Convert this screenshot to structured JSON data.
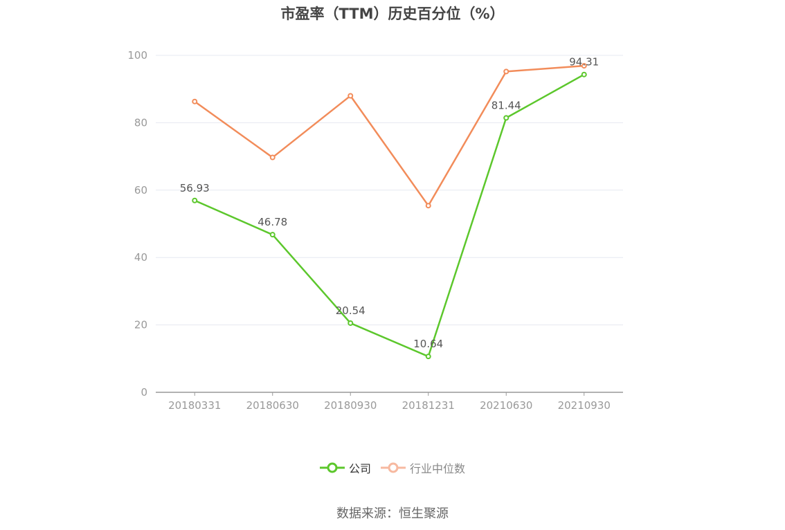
{
  "title": "市盈率（TTM）历史百分位（%）",
  "source": "数据来源：恒生聚源",
  "chart_data": {
    "type": "line",
    "title": "市盈率（TTM）历史百分位（%）",
    "categories": [
      "20180331",
      "20180630",
      "20180930",
      "20181231",
      "20210630",
      "20210930"
    ],
    "ylim": [
      0,
      100
    ],
    "yticks": [
      0,
      20,
      40,
      60,
      80,
      100
    ],
    "grid": true,
    "legend_position": "bottom",
    "series": [
      {
        "name": "公司",
        "color": "#5cc72c",
        "values": [
          56.93,
          46.78,
          20.54,
          10.64,
          81.44,
          94.31
        ],
        "labels": [
          "56.93",
          "46.78",
          "20.54",
          "10.64",
          "81.44",
          "94.31"
        ]
      },
      {
        "name": "行业中位数",
        "color": "#f28c5a",
        "values": [
          86.3,
          69.7,
          88.0,
          55.4,
          95.2,
          96.9
        ]
      }
    ]
  }
}
